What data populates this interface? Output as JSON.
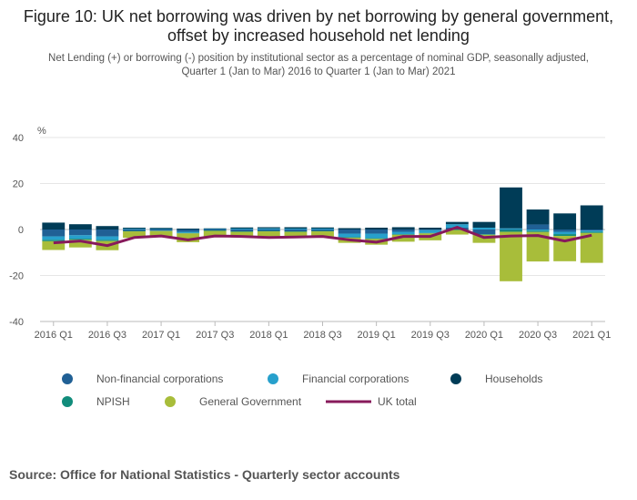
{
  "header": {
    "title": "Figure 10: UK net borrowing was driven by net borrowing by general government, offset by increased household net lending",
    "subtitle": "Net Lending (+) or borrowing (-) position by institutional sector as a percentage of nominal GDP, seasonally adjusted, Quarter 1 (Jan to Mar) 2016 to Quarter 1 (Jan to Mar) 2021"
  },
  "footer": {
    "source": "Source: Office for National Statistics - Quarterly sector accounts"
  },
  "chart_data": {
    "type": "bar",
    "stacked": true,
    "ylabel": "%",
    "ylim": [
      -40,
      40
    ],
    "yticks": [
      40,
      20,
      0,
      -20,
      -40
    ],
    "grid": true,
    "x_tick_labels": [
      "2016 Q1",
      "2016 Q3",
      "2017 Q1",
      "2017 Q3",
      "2018 Q1",
      "2018 Q3",
      "2019 Q1",
      "2019 Q3",
      "2020 Q1",
      "2020 Q3",
      "2021 Q1"
    ],
    "categories": [
      "2016 Q1",
      "2016 Q2",
      "2016 Q3",
      "2016 Q4",
      "2017 Q1",
      "2017 Q2",
      "2017 Q3",
      "2017 Q4",
      "2018 Q1",
      "2018 Q2",
      "2018 Q3",
      "2018 Q4",
      "2019 Q1",
      "2019 Q2",
      "2019 Q3",
      "2019 Q4",
      "2020 Q1",
      "2020 Q2",
      "2020 Q3",
      "2020 Q4",
      "2021 Q1"
    ],
    "colors": {
      "Non-financial corporations": "#206095",
      "Financial corporations": "#27a0cc",
      "Households": "#003c57",
      "NPISH": "#118c7b",
      "General Government": "#a8bd3a",
      "UK total": "#871a5b"
    },
    "series": [
      {
        "name": "Non-financial corporations",
        "values": [
          -3.0,
          -2.5,
          -3.0,
          -0.6,
          -0.5,
          -1.0,
          -0.4,
          -0.8,
          -0.6,
          -0.8,
          -0.6,
          -1.8,
          -1.8,
          -1.0,
          -0.3,
          0.8,
          -2.0,
          -0.2,
          2.2,
          -1.0,
          -0.5
        ]
      },
      {
        "name": "Financial corporations",
        "values": [
          -1.5,
          -1.5,
          -1.5,
          0.3,
          0.2,
          -0.5,
          0.2,
          0.4,
          0.5,
          0.4,
          0.4,
          -1.5,
          -2.0,
          -1.0,
          -1.2,
          1.5,
          0.8,
          0.5,
          -0.5,
          -1.0,
          -0.5
        ]
      },
      {
        "name": "Households",
        "values": [
          3.0,
          2.3,
          1.5,
          0.5,
          0.5,
          0.4,
          0.3,
          0.5,
          0.5,
          0.6,
          0.5,
          0.6,
          0.8,
          1.0,
          0.8,
          1.0,
          2.5,
          17.8,
          6.5,
          7.0,
          10.5
        ]
      },
      {
        "name": "NPISH",
        "values": [
          -0.6,
          -0.5,
          -0.5,
          -0.2,
          -0.2,
          -0.2,
          -0.2,
          -0.2,
          -0.2,
          -0.2,
          -0.2,
          -0.3,
          -0.3,
          -0.3,
          -0.2,
          -0.2,
          -0.3,
          -0.8,
          -0.6,
          -0.8,
          -0.5
        ]
      },
      {
        "name": "General Government",
        "values": [
          -3.8,
          -3.3,
          -4.0,
          -2.8,
          -2.5,
          -3.8,
          -2.8,
          -2.5,
          -3.0,
          -2.5,
          -2.5,
          -2.2,
          -2.5,
          -3.0,
          -3.0,
          -2.0,
          -3.5,
          -21.5,
          -12.8,
          -11.0,
          -13.0
        ]
      },
      {
        "name": "UK total",
        "type": "line",
        "values": [
          -5.8,
          -5.0,
          -7.0,
          -3.5,
          -2.8,
          -4.5,
          -2.8,
          -3.0,
          -3.5,
          -3.3,
          -3.0,
          -4.5,
          -5.5,
          -3.0,
          -3.0,
          1.0,
          -3.5,
          -2.8,
          -2.6,
          -5.0,
          -2.5
        ]
      }
    ],
    "legend": {
      "placement": "bottom",
      "items": [
        "Non-financial corporations",
        "Financial corporations",
        "Households",
        "NPISH",
        "General Government",
        "UK total"
      ]
    }
  }
}
